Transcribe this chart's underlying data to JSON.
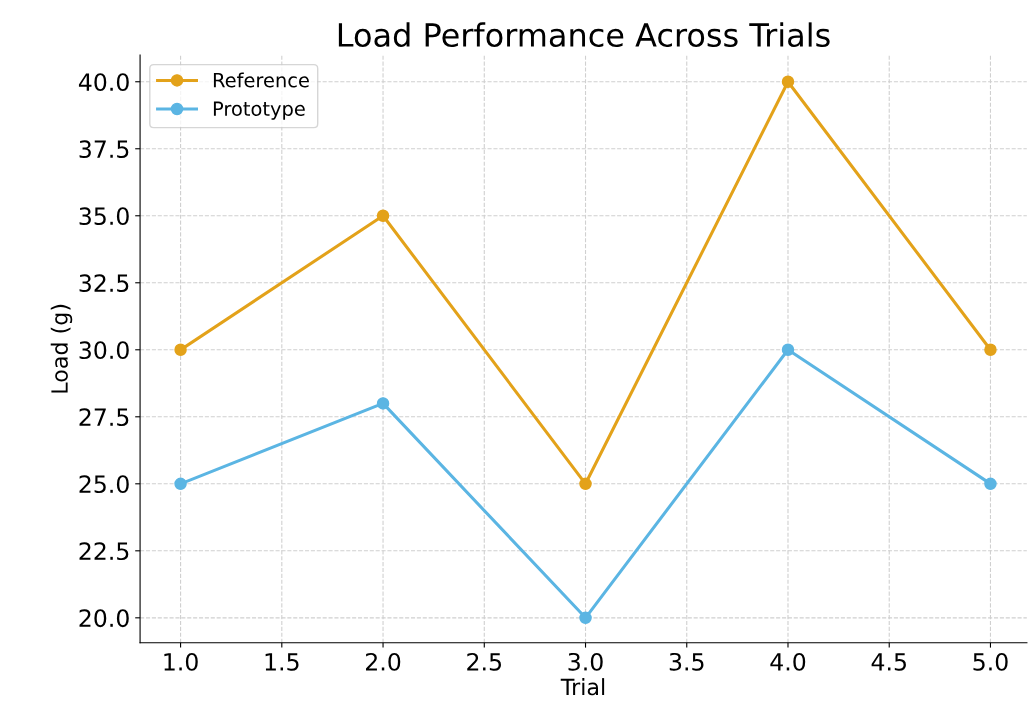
{
  "chart_data": {
    "type": "line",
    "title": "Load Performance Across Trials",
    "xlabel": "Trial",
    "ylabel": "Load (g)",
    "x": [
      1,
      2,
      3,
      4,
      5
    ],
    "series": [
      {
        "name": "Reference",
        "color": "#e3a21a",
        "values": [
          30,
          35,
          25,
          40,
          30
        ]
      },
      {
        "name": "Prototype",
        "color": "#5bb5e3",
        "values": [
          25,
          28,
          20,
          30,
          25
        ]
      }
    ],
    "xlim": [
      0.8,
      5.18
    ],
    "ylim": [
      19.07,
      41.0
    ],
    "xticks": [
      {
        "value": 1,
        "label": "1.0"
      },
      {
        "value": 1.5,
        "label": "1.5"
      },
      {
        "value": 2,
        "label": "2.0"
      },
      {
        "value": 2.5,
        "label": "2.5"
      },
      {
        "value": 3,
        "label": "3.0"
      },
      {
        "value": 3.5,
        "label": "3.5"
      },
      {
        "value": 4,
        "label": "4.0"
      },
      {
        "value": 4.5,
        "label": "4.5"
      },
      {
        "value": 5,
        "label": "5.0"
      }
    ],
    "yticks": [
      {
        "value": 20,
        "label": "20.0"
      },
      {
        "value": 22.5,
        "label": "22.5"
      },
      {
        "value": 25,
        "label": "25.0"
      },
      {
        "value": 27.5,
        "label": "27.5"
      },
      {
        "value": 30,
        "label": "30.0"
      },
      {
        "value": 32.5,
        "label": "32.5"
      },
      {
        "value": 35,
        "label": "35.0"
      },
      {
        "value": 37.5,
        "label": "37.5"
      },
      {
        "value": 40,
        "label": "40.0"
      }
    ],
    "grid": true,
    "legend": "top left",
    "marker": "circle",
    "line_style": "solid"
  }
}
